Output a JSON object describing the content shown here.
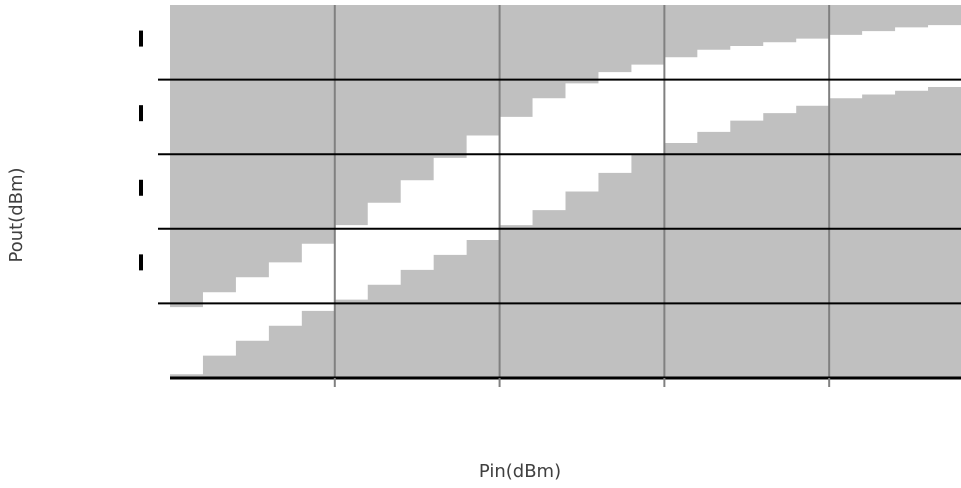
{
  "chart_data": {
    "type": "area",
    "title": "",
    "xlabel": "Pin(dBm)",
    "ylabel": "Pout(dBm)",
    "xlim": [
      0,
      4.8
    ],
    "ylim": [
      0,
      5
    ],
    "grid": true,
    "legend": "none",
    "x_tick_labels": [],
    "y_tick_labels": [],
    "fill_color": "#c0c0c0",
    "band_color": "#ffffff",
    "grid_color": "#808080",
    "axis_color": "#000000",
    "series": [
      {
        "x": [
          0.0,
          0.2,
          0.4,
          0.6,
          0.8,
          1.0,
          1.2,
          1.4,
          1.6,
          1.8,
          2.0,
          2.2,
          2.4,
          2.6,
          2.8,
          3.0,
          3.2,
          3.4,
          3.6,
          3.8,
          4.0,
          4.2,
          4.4,
          4.6,
          4.8
        ],
        "upper": [
          0.95,
          1.15,
          1.35,
          1.55,
          1.8,
          2.05,
          2.35,
          2.65,
          2.95,
          3.25,
          3.5,
          3.75,
          3.95,
          4.1,
          4.2,
          4.3,
          4.4,
          4.45,
          4.5,
          4.55,
          4.6,
          4.65,
          4.7,
          4.73,
          4.75
        ],
        "lower": [
          0.05,
          0.3,
          0.5,
          0.7,
          0.9,
          1.05,
          1.25,
          1.45,
          1.65,
          1.85,
          2.05,
          2.25,
          2.5,
          2.75,
          3.0,
          3.15,
          3.3,
          3.45,
          3.55,
          3.65,
          3.75,
          3.8,
          3.85,
          3.9,
          3.95
        ]
      }
    ]
  }
}
